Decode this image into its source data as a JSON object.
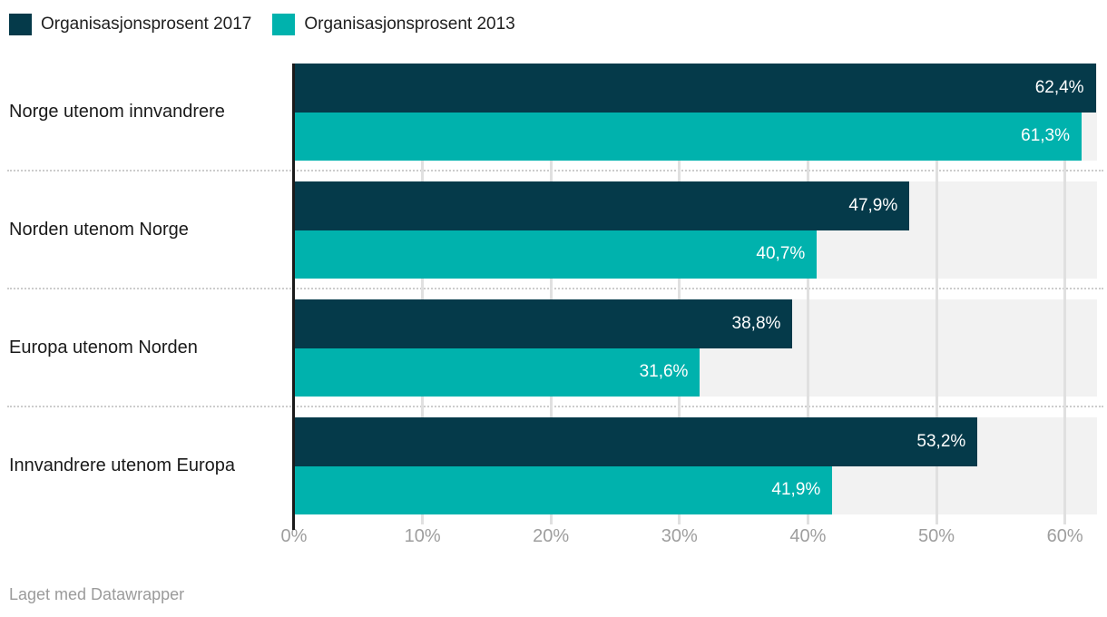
{
  "legend": {
    "items": [
      {
        "label": "Organisasjonsprosent 2017",
        "color": "#053a4a"
      },
      {
        "label": "Organisasjonsprosent 2013",
        "color": "#00b2ad"
      }
    ]
  },
  "chart_data": {
    "type": "bar",
    "orientation": "horizontal",
    "title": "",
    "xlabel": "",
    "ylabel": "",
    "categories": [
      "Norge utenom innvandrere",
      "Norden utenom Norge",
      "Europa utenom Norden",
      "Innvandrere utenom Europa"
    ],
    "series": [
      {
        "name": "Organisasjonsprosent 2017",
        "color": "#053a4a",
        "values": [
          62.4,
          47.9,
          38.8,
          53.2
        ],
        "value_labels": [
          "62,4%",
          "47,9%",
          "38,8%",
          "53,2%"
        ]
      },
      {
        "name": "Organisasjonsprosent 2013",
        "color": "#00b2ad",
        "values": [
          61.3,
          40.7,
          31.6,
          41.9
        ],
        "value_labels": [
          "61,3%",
          "40,7%",
          "31,6%",
          "41,9%"
        ]
      }
    ],
    "xlim": [
      0,
      62.5
    ],
    "ticks": [
      0,
      10,
      20,
      30,
      40,
      50,
      60
    ],
    "tick_labels": [
      "0%",
      "10%",
      "20%",
      "30%",
      "40%",
      "50%",
      "60%"
    ],
    "grid": "vertical",
    "plot_background": "#f2f2f2",
    "gridline_color": "#e0e0e0",
    "legend_position": "top"
  },
  "footer": {
    "credit": "Laget med Datawrapper"
  }
}
